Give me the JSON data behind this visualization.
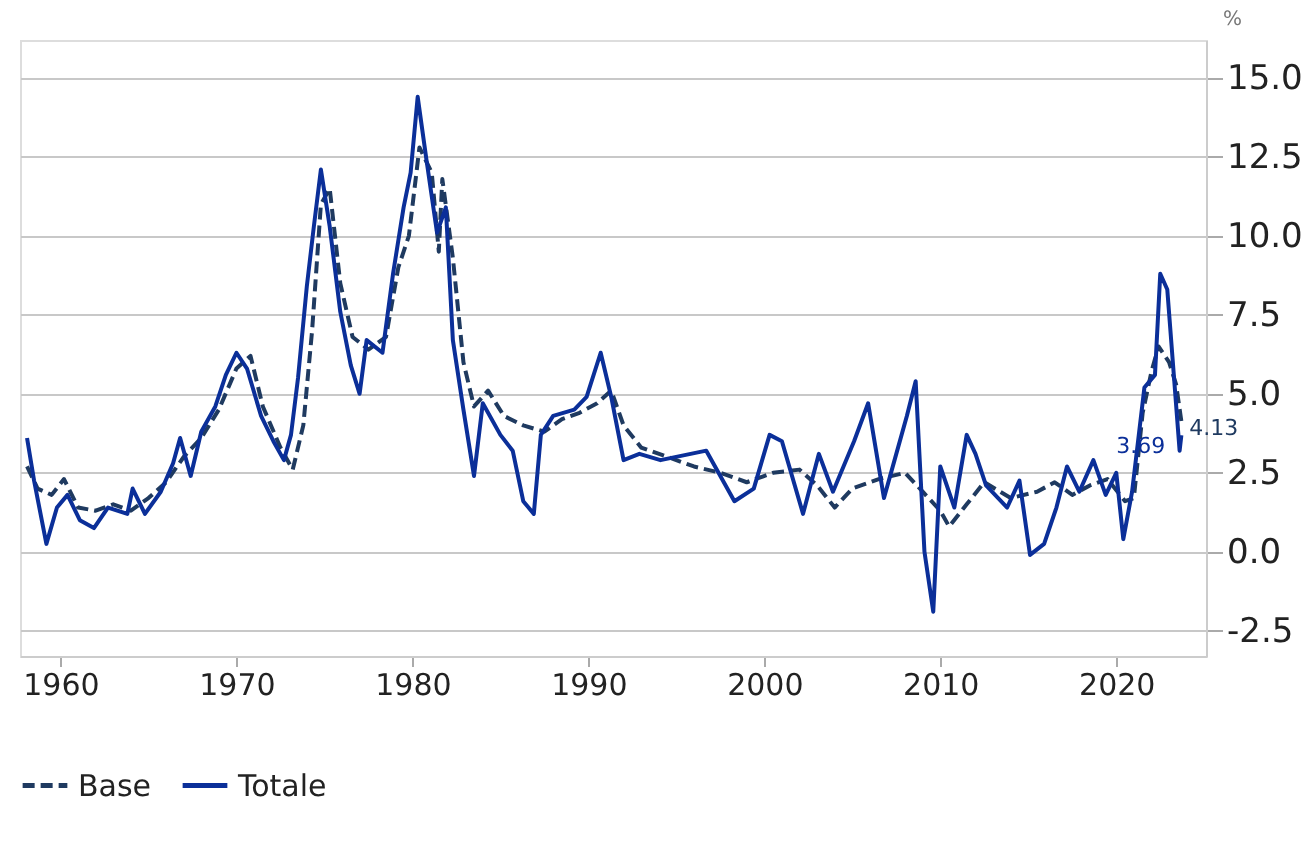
{
  "chart_data": {
    "type": "line",
    "ylabel": "%",
    "xlim": [
      1957.7,
      2025.1
    ],
    "ylim": [
      -3.3,
      16.2
    ],
    "xticks": [
      1960,
      1970,
      1980,
      1990,
      2000,
      2010,
      2020
    ],
    "yticks": [
      {
        "value": -2.5,
        "label": "-2.5"
      },
      {
        "value": 0,
        "label": "0.0"
      },
      {
        "value": 2.5,
        "label": "2.5"
      },
      {
        "value": 5,
        "label": "5.0"
      },
      {
        "value": 7.5,
        "label": "7.5"
      },
      {
        "value": 10,
        "label": "10.0"
      },
      {
        "value": 12.5,
        "label": "12.5"
      },
      {
        "value": 15,
        "label": "15.0"
      }
    ],
    "grid": "y",
    "legend": "bottom",
    "series": [
      {
        "name": "Base",
        "color": "#1f3a60",
        "line_style": "dashed",
        "x": [
          1958.1,
          1958.7,
          1959.5,
          1960.2,
          1961,
          1962,
          1963,
          1964,
          1965,
          1966,
          1967,
          1968,
          1969,
          1970,
          1970.8,
          1971.5,
          1972.5,
          1973.2,
          1973.8,
          1974.3,
          1974.8,
          1975.3,
          1975.9,
          1976.6,
          1977.5,
          1978.5,
          1979.2,
          1979.8,
          1980.4,
          1981.1,
          1981.5,
          1981.7,
          1982.3,
          1982.9,
          1983.5,
          1984.3,
          1985.2,
          1986.3,
          1987.5,
          1988.5,
          1989.5,
          1990.5,
          1991.3,
          1992,
          1993,
          1994.5,
          1996,
          1997.5,
          1999,
          2000.5,
          2002,
          2003,
          2004,
          2005,
          2006.5,
          2008,
          2009,
          2010,
          2010.5,
          2011.5,
          2012.5,
          2014,
          2015.5,
          2016.5,
          2017.5,
          2018.5,
          2019.5,
          2020.5,
          2021,
          2021.5,
          2022,
          2022.4,
          2023,
          2023.4,
          2023.7
        ],
        "values": [
          2.7,
          2.0,
          1.8,
          2.3,
          1.4,
          1.3,
          1.5,
          1.3,
          1.7,
          2.2,
          3.0,
          3.6,
          4.5,
          5.8,
          6.2,
          4.6,
          3.3,
          2.6,
          4.0,
          7.0,
          11.0,
          11.5,
          8.5,
          6.8,
          6.4,
          6.8,
          9.0,
          10.0,
          12.8,
          12.0,
          9.5,
          11.8,
          9.3,
          6.0,
          4.6,
          5.1,
          4.3,
          4.0,
          3.8,
          4.2,
          4.4,
          4.7,
          5.1,
          4.0,
          3.3,
          3.0,
          2.7,
          2.5,
          2.2,
          2.5,
          2.6,
          2.1,
          1.4,
          2.0,
          2.3,
          2.5,
          1.9,
          1.3,
          0.8,
          1.5,
          2.2,
          1.7,
          1.9,
          2.2,
          1.8,
          2.1,
          2.3,
          1.6,
          1.7,
          4.4,
          5.7,
          6.5,
          6.0,
          5.3,
          4.13
        ],
        "value_labels": [
          null,
          null,
          null,
          null,
          null,
          null,
          null,
          null,
          null,
          null,
          null,
          null,
          null,
          null,
          null,
          null,
          null,
          null,
          null,
          null,
          null,
          null,
          null,
          null,
          null,
          null,
          null,
          null,
          null,
          null,
          null,
          null,
          null,
          null,
          null,
          null,
          null,
          null,
          null,
          null,
          null,
          null,
          null,
          null,
          null,
          null,
          null,
          null,
          null,
          null,
          null,
          null,
          null,
          null,
          null,
          null,
          null,
          null,
          null,
          null,
          null,
          null,
          null,
          null,
          null,
          null,
          null,
          null,
          null,
          null,
          null,
          null,
          null,
          null,
          "4.13"
        ]
      },
      {
        "name": "Totale",
        "color": "#0b2f99",
        "line_style": "solid",
        "x": [
          1958.1,
          1958.5,
          1959.2,
          1959.8,
          1960.4,
          1961.1,
          1961.9,
          1962.7,
          1963.8,
          1964.1,
          1964.8,
          1965.7,
          1966.4,
          1966.8,
          1967.4,
          1968.0,
          1968.8,
          1969.4,
          1970.0,
          1970.6,
          1971.4,
          1972.1,
          1972.7,
          1973.1,
          1973.5,
          1974.0,
          1974.4,
          1974.8,
          1975.3,
          1975.9,
          1976.5,
          1977.0,
          1977.4,
          1978.3,
          1978.9,
          1979.5,
          1979.9,
          1980.3,
          1980.8,
          1981.4,
          1981.9,
          1982.3,
          1982.9,
          1983.5,
          1984.0,
          1985.0,
          1985.7,
          1986.3,
          1986.9,
          1987.3,
          1988.0,
          1989.2,
          1989.9,
          1990.7,
          1991.3,
          1992.0,
          1992.9,
          1994.1,
          1996.7,
          1998.3,
          1999.4,
          2000.3,
          2001.0,
          2002.2,
          2003.1,
          2003.9,
          2005.1,
          2005.9,
          2006.8,
          2007.4,
          2008.1,
          2008.6,
          2009.1,
          2009.6,
          2010.0,
          2010.8,
          2011.5,
          2012.0,
          2012.6,
          2013.8,
          2014.5,
          2015.1,
          2015.9,
          2016.6,
          2017.2,
          2017.9,
          2018.7,
          2019.4,
          2020.0,
          2020.4,
          2020.9,
          2021.6,
          2022.2,
          2022.5,
          2022.9,
          2023.6,
          2023.7
        ],
        "values": [
          3.6,
          2.25,
          0.25,
          1.4,
          1.8,
          1.0,
          0.75,
          1.4,
          1.2,
          2.0,
          1.2,
          1.9,
          2.8,
          3.6,
          2.4,
          3.8,
          4.6,
          5.6,
          6.3,
          5.8,
          4.3,
          3.5,
          2.9,
          3.7,
          5.5,
          8.4,
          10.3,
          12.1,
          10.3,
          7.6,
          5.9,
          5.0,
          6.7,
          6.3,
          8.8,
          10.9,
          12.0,
          14.4,
          12.4,
          10.1,
          10.9,
          6.7,
          4.5,
          2.4,
          4.7,
          3.7,
          3.2,
          1.6,
          1.2,
          3.7,
          4.3,
          4.5,
          4.9,
          6.3,
          4.9,
          2.9,
          3.1,
          2.9,
          3.2,
          1.6,
          2.0,
          3.7,
          3.5,
          1.2,
          3.1,
          1.9,
          3.5,
          4.7,
          1.7,
          2.9,
          4.3,
          5.4,
          0.0,
          -1.9,
          2.7,
          1.4,
          3.7,
          3.1,
          2.1,
          1.4,
          2.25,
          -0.1,
          0.25,
          1.4,
          2.7,
          1.9,
          2.9,
          1.8,
          2.5,
          0.4,
          1.9,
          5.2,
          5.6,
          8.8,
          8.3,
          3.2,
          3.69
        ],
        "value_labels": [
          null,
          null,
          null,
          null,
          null,
          null,
          null,
          null,
          null,
          null,
          null,
          null,
          null,
          null,
          null,
          null,
          null,
          null,
          null,
          null,
          null,
          null,
          null,
          null,
          null,
          null,
          null,
          null,
          null,
          null,
          null,
          null,
          null,
          null,
          null,
          null,
          null,
          null,
          null,
          null,
          null,
          null,
          null,
          null,
          null,
          null,
          null,
          null,
          null,
          null,
          null,
          null,
          null,
          null,
          null,
          null,
          null,
          null,
          null,
          null,
          null,
          null,
          null,
          null,
          null,
          null,
          null,
          null,
          null,
          null,
          null,
          null,
          null,
          null,
          null,
          null,
          null,
          null,
          null,
          null,
          null,
          null,
          null,
          null,
          null,
          null,
          null,
          null,
          null,
          null,
          null,
          null,
          null,
          null,
          null,
          null,
          "3.69"
        ]
      }
    ]
  }
}
